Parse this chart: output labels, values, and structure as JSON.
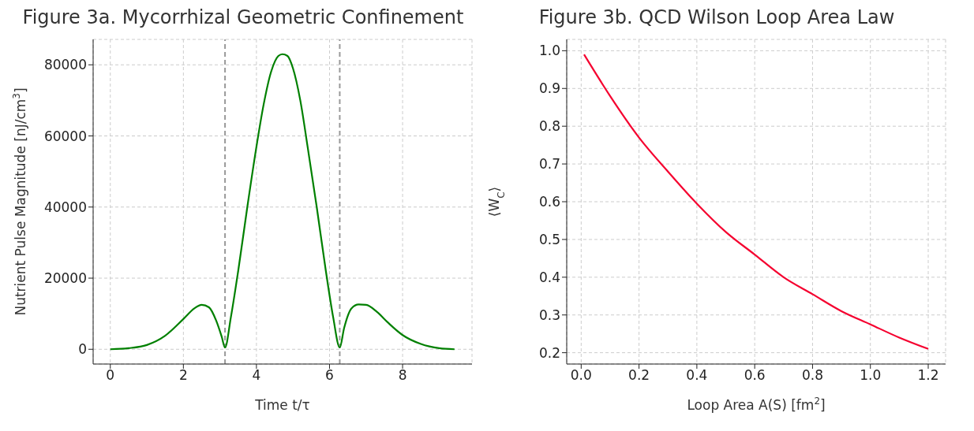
{
  "chart_data": [
    {
      "type": "line",
      "title": "Figure 3a. Mycorrhizal Geometric Confinement",
      "xlabel": "Time t/τ",
      "ylabel": "Nutrient Pulse Magnitude [nJ/cm$^{3}$]",
      "x": [
        0,
        0.5,
        1,
        1.5,
        2,
        2.3,
        2.5,
        2.7,
        2.9,
        3.05,
        3.14,
        3.3,
        3.5,
        3.75,
        4.0,
        4.2,
        4.4,
        4.6,
        4.71,
        4.85,
        5.0,
        5.2,
        5.4,
        5.65,
        5.9,
        6.1,
        6.28,
        6.4,
        6.6,
        6.8,
        7.0,
        7.3,
        7.6,
        8.0,
        8.5,
        9.0,
        9.42
      ],
      "series": [
        {
          "color": "#008000",
          "values": [
            0,
            300,
            1200,
            3800,
            8500,
            11500,
            12500,
            11800,
            8000,
            3500,
            500,
            9000,
            22000,
            40000,
            57000,
            69000,
            78000,
            82500,
            83000,
            82500,
            79000,
            70000,
            57000,
            40000,
            22000,
            9000,
            500,
            6000,
            11500,
            12600,
            12500,
            10500,
            7500,
            4000,
            1500,
            300,
            0
          ]
        }
      ],
      "xlim": [
        -0.47,
        9.9
      ],
      "xticks": [
        0,
        2,
        4,
        6,
        8
      ],
      "ylim": [
        -4150,
        87150
      ],
      "yticks": [
        0,
        20000,
        40000,
        60000,
        80000
      ],
      "ref_lines": [
        {
          "axis": "x",
          "value": 3.14,
          "color": "#999999",
          "line_style": "dashed"
        },
        {
          "axis": "x",
          "value": 6.28,
          "color": "#999999",
          "line_style": "dashed"
        }
      ],
      "grid": true,
      "legend": false,
      "marker": "none",
      "line_style": "solid"
    },
    {
      "type": "line",
      "title": "Figure 3b. QCD Wilson Loop Area Law",
      "xlabel": "Loop Area A(S) [fm$^{2}$]",
      "ylabel": "⟨W$_{C}$⟩",
      "x": [
        0.01,
        0.1,
        0.2,
        0.3,
        0.4,
        0.5,
        0.6,
        0.7,
        0.8,
        0.9,
        1.0,
        1.1,
        1.2
      ],
      "series": [
        {
          "color": "#f5002f",
          "values": [
            0.99,
            0.88,
            0.77,
            0.68,
            0.595,
            0.52,
            0.46,
            0.4,
            0.355,
            0.31,
            0.275,
            0.24,
            0.21
          ]
        }
      ],
      "xlim": [
        -0.05,
        1.26
      ],
      "xticks": [
        {
          "value": 0,
          "label": "0.0"
        },
        0.2,
        0.4,
        0.6,
        0.8,
        {
          "value": 1,
          "label": "1.0"
        },
        1.2
      ],
      "ylim": [
        0.17,
        1.03
      ],
      "yticks": [
        0.2,
        0.3,
        0.4,
        0.5,
        0.6,
        0.7,
        0.8,
        0.9,
        {
          "value": 1,
          "label": "1.0"
        }
      ],
      "grid": true,
      "legend": false,
      "marker": "none",
      "line_style": "solid"
    }
  ]
}
